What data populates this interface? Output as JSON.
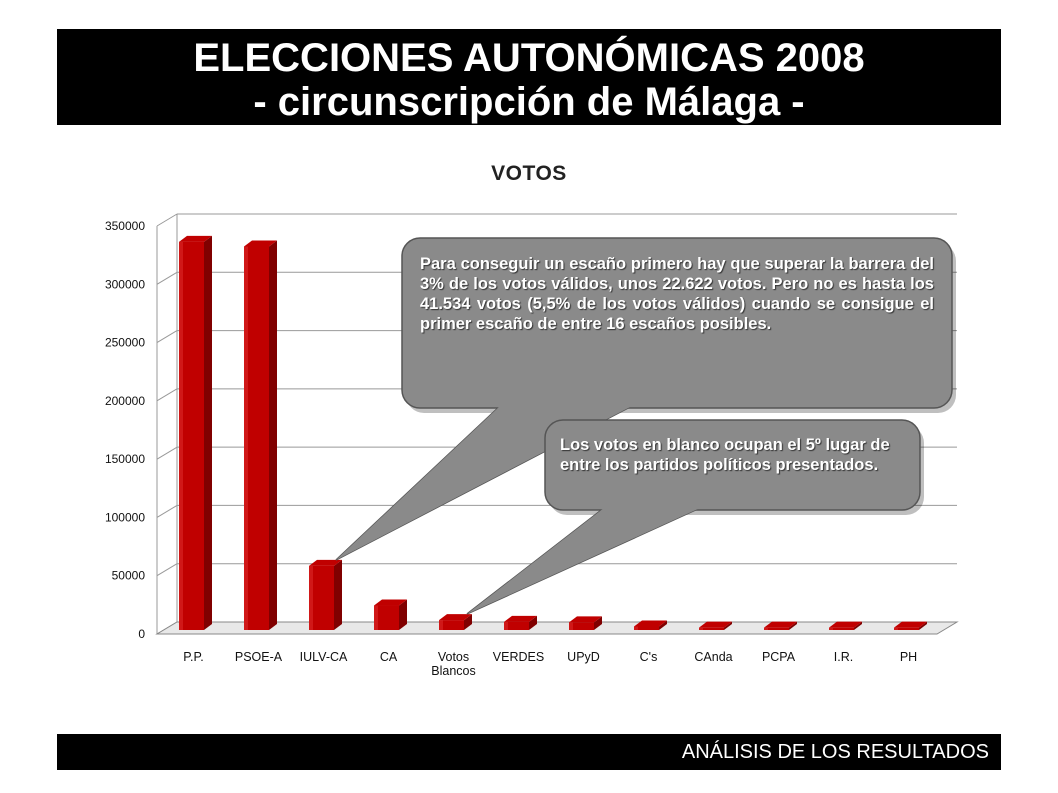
{
  "header": {
    "title_line1": "ELECCIONES AUTONÓMICAS 2008",
    "title_line2": "- circunscripción de Málaga -"
  },
  "footer": {
    "label": "ANÁLISIS DE LOS RESULTADOS"
  },
  "colors": {
    "bar": "#c00000",
    "bar_dark": "#800000",
    "callout": "#8a8a8a",
    "bars_border": "#555555"
  },
  "chart_data": {
    "type": "bar",
    "title": "VOTOS",
    "categories": [
      "P.P.",
      "PSOE-A",
      "IULV-CA",
      "CA",
      "Votos Blancos",
      "VERDES",
      "UPyD",
      "C's",
      "CAnda",
      "PCPA",
      "I.R.",
      "PH"
    ],
    "values": [
      333000,
      329000,
      55000,
      21000,
      8500,
      7000,
      6500,
      3000,
      2000,
      2000,
      2000,
      2000
    ],
    "ylim": [
      0,
      350000
    ],
    "yticks": [
      "0",
      "50000",
      "100000",
      "150000",
      "200000",
      "250000",
      "300000",
      "350000"
    ],
    "grid": true,
    "legend": "none"
  },
  "callouts": [
    {
      "text": "Para conseguir un escaño primero hay que superar la barrera del 3% de los votos válidos, unos 22.622 votos. Pero no es hasta los 41.534 votos (5,5% de los votos válidos) cuando se consigue el primer escaño de entre 16 escaños posibles."
    },
    {
      "text": "Los votos en blanco ocupan el 5º lugar de entre los partidos políticos presentados."
    }
  ]
}
